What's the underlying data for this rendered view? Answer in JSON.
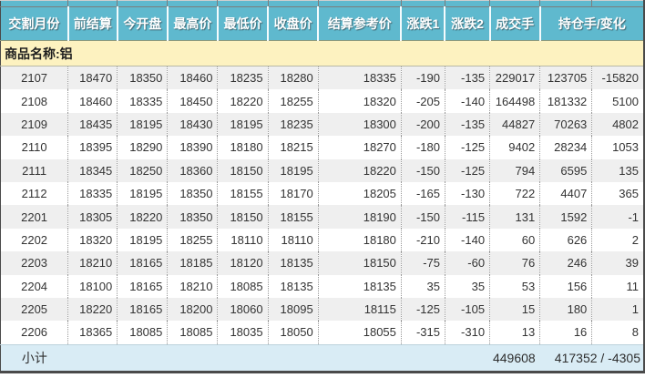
{
  "commodity_bar": {
    "label": "商品名称:铝"
  },
  "table": {
    "columns": [
      "交割月份",
      "前结算",
      "今开盘",
      "最高价",
      "最低价",
      "收盘价",
      "结算参考价",
      "涨跌1",
      "涨跌2",
      "成交手",
      "持仓手/变化"
    ],
    "rows": [
      {
        "month": "2107",
        "values": [
          "18470",
          "18350",
          "18460",
          "18235",
          "18280",
          "18335",
          "-190",
          "-135",
          "229017",
          "123705",
          "-15820"
        ]
      },
      {
        "month": "2108",
        "values": [
          "18460",
          "18335",
          "18450",
          "18220",
          "18255",
          "18320",
          "-205",
          "-140",
          "164498",
          "181332",
          "5100"
        ]
      },
      {
        "month": "2109",
        "values": [
          "18435",
          "18195",
          "18430",
          "18195",
          "18235",
          "18300",
          "-200",
          "-135",
          "44827",
          "70263",
          "4802"
        ]
      },
      {
        "month": "2110",
        "values": [
          "18395",
          "18290",
          "18390",
          "18180",
          "18215",
          "18270",
          "-180",
          "-125",
          "9402",
          "28234",
          "1053"
        ]
      },
      {
        "month": "2111",
        "values": [
          "18345",
          "18250",
          "18360",
          "18150",
          "18195",
          "18220",
          "-150",
          "-125",
          "794",
          "6595",
          "135"
        ]
      },
      {
        "month": "2112",
        "values": [
          "18335",
          "18195",
          "18350",
          "18155",
          "18170",
          "18205",
          "-165",
          "-130",
          "722",
          "4407",
          "365"
        ]
      },
      {
        "month": "2201",
        "values": [
          "18305",
          "18220",
          "18350",
          "18150",
          "18155",
          "18190",
          "-150",
          "-115",
          "131",
          "1592",
          "-1"
        ]
      },
      {
        "month": "2202",
        "values": [
          "18320",
          "18195",
          "18255",
          "18110",
          "18110",
          "18180",
          "-210",
          "-140",
          "60",
          "626",
          "2"
        ]
      },
      {
        "month": "2203",
        "values": [
          "18210",
          "18165",
          "18185",
          "18120",
          "18135",
          "18150",
          "-75",
          "-60",
          "76",
          "246",
          "39"
        ]
      },
      {
        "month": "2204",
        "values": [
          "18100",
          "18165",
          "18210",
          "18085",
          "18135",
          "18135",
          "35",
          "35",
          "53",
          "156",
          "11"
        ]
      },
      {
        "month": "2205",
        "values": [
          "18220",
          "18165",
          "18200",
          "18060",
          "18095",
          "18115",
          "-125",
          "-105",
          "15",
          "180",
          "1"
        ]
      },
      {
        "month": "2206",
        "values": [
          "18365",
          "18085",
          "18085",
          "18035",
          "18050",
          "18055",
          "-315",
          "-310",
          "13",
          "16",
          "8"
        ]
      }
    ],
    "subtotal": {
      "label": "小计",
      "volume_total": "449608",
      "open_interest_total": "417352 / -4305"
    }
  },
  "colors": {
    "header_bg": "#5fb9ce",
    "commodity_band_bg": "#fdf2c0",
    "alt_row_bg": "#efefef",
    "subtotal_bg": "#d9ecf5",
    "outer_border": "#4a4a4a",
    "column_separator": "#999999",
    "body_text": "#333333",
    "header_text": "#ffffff"
  }
}
